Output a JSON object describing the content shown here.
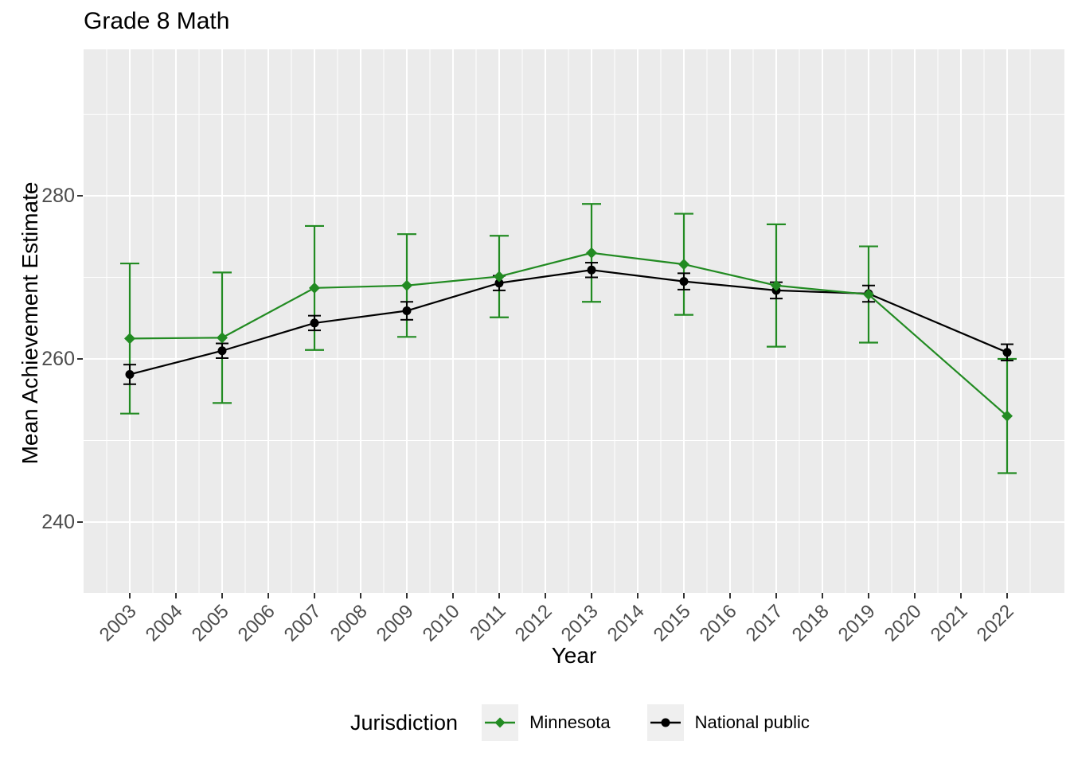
{
  "title": "Grade 8 Math",
  "axes": {
    "y": {
      "title": "Mean Achievement Estimate",
      "ticks": [
        "280",
        "260",
        "240"
      ]
    },
    "x": {
      "title": "Year",
      "ticks": [
        "2003",
        "2004",
        "2005",
        "2006",
        "2007",
        "2008",
        "2009",
        "2010",
        "2011",
        "2012",
        "2013",
        "2014",
        "2015",
        "2016",
        "2017",
        "2018",
        "2019",
        "2020",
        "2021",
        "2022"
      ]
    }
  },
  "legend": {
    "title": "Jurisdiction",
    "entries": [
      {
        "label": "Minnesota",
        "color": "#228B22",
        "marker": "diamond"
      },
      {
        "label": "National public",
        "color": "#000000",
        "marker": "circle"
      }
    ]
  },
  "colors": {
    "panel_background": "#EBEBEB",
    "gridline": "#FFFFFF",
    "axis_text": "#4D4D4D",
    "tick_mark": "#333333",
    "minnesota": "#228B22",
    "national_public": "#000000",
    "legend_key_background": "#EFEFEF"
  },
  "chart_data": {
    "type": "line",
    "title": "Grade 8 Math",
    "xlabel": "Year",
    "ylabel": "Mean Achievement Estimate",
    "x": [
      2003,
      2005,
      2007,
      2009,
      2011,
      2013,
      2015,
      2017,
      2019,
      2022
    ],
    "series": [
      {
        "name": "Minnesota",
        "color": "#228B22",
        "marker": "diamond",
        "values": [
          262.5,
          262.6,
          268.7,
          269.0,
          270.1,
          273.0,
          271.6,
          269.0,
          267.9,
          253.0
        ],
        "error": [
          9.2,
          8.0,
          7.6,
          6.3,
          5.0,
          6.0,
          6.2,
          7.5,
          5.9,
          7.0
        ]
      },
      {
        "name": "National public",
        "color": "#000000",
        "marker": "circle",
        "values": [
          258.1,
          261.0,
          264.4,
          265.9,
          269.3,
          270.9,
          269.5,
          268.4,
          268.0,
          260.8
        ],
        "error": [
          1.2,
          0.9,
          0.9,
          1.1,
          0.9,
          0.9,
          1.0,
          1.0,
          1.0,
          1.0
        ]
      }
    ],
    "x_ticks": [
      2003,
      2004,
      2005,
      2006,
      2007,
      2008,
      2009,
      2010,
      2011,
      2012,
      2013,
      2014,
      2015,
      2016,
      2017,
      2018,
      2019,
      2020,
      2021,
      2022
    ],
    "y_ticks": [
      280,
      260,
      240
    ],
    "xlim": [
      2002,
      2023
    ],
    "ylim": [
      231,
      298
    ],
    "grid": "major-and-minor",
    "legend_position": "bottom",
    "error_bars": true
  }
}
